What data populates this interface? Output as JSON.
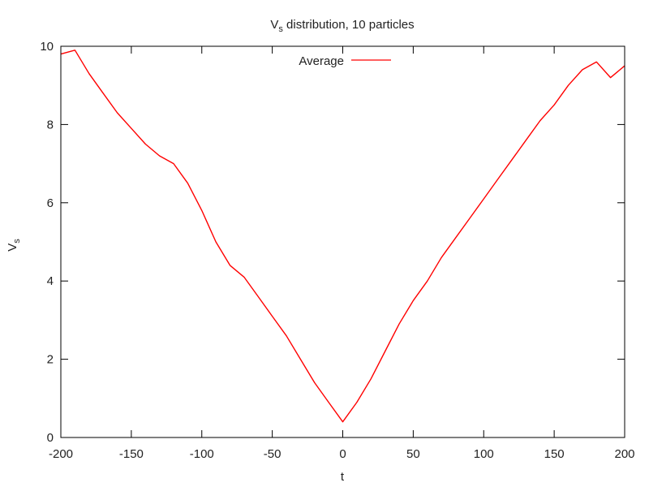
{
  "chart_data": {
    "type": "line",
    "title_main": "V",
    "title_sub": "s",
    "title_rest": " distribution, 10 particles",
    "xlabel": "t",
    "ylabel_main": "V",
    "ylabel_sub": "s",
    "xlim": [
      -200,
      200
    ],
    "ylim": [
      0,
      10
    ],
    "xticks": [
      -200,
      -150,
      -100,
      -50,
      0,
      50,
      100,
      150,
      200
    ],
    "yticks": [
      0,
      2,
      4,
      6,
      8,
      10
    ],
    "xtick_labels": [
      "-200",
      "-150",
      "-100",
      "-50",
      "0",
      "50",
      "100",
      "150",
      "200"
    ],
    "ytick_labels": [
      "0",
      "2",
      "4",
      "6",
      "8",
      "10"
    ],
    "grid": false,
    "legend_position": "top-center",
    "series": [
      {
        "name": "Average",
        "color": "#ff0000",
        "x": [
          -200,
          -190,
          -180,
          -170,
          -160,
          -150,
          -140,
          -130,
          -120,
          -110,
          -100,
          -90,
          -80,
          -70,
          -60,
          -50,
          -40,
          -30,
          -20,
          -10,
          0,
          10,
          20,
          30,
          40,
          50,
          60,
          70,
          80,
          90,
          100,
          110,
          120,
          130,
          140,
          150,
          160,
          170,
          180,
          190,
          200
        ],
        "y": [
          9.8,
          9.9,
          9.3,
          8.8,
          8.3,
          7.9,
          7.5,
          7.2,
          7.0,
          6.5,
          5.8,
          5.0,
          4.4,
          4.1,
          3.6,
          3.1,
          2.6,
          2.0,
          1.4,
          0.9,
          0.4,
          0.9,
          1.5,
          2.2,
          2.9,
          3.5,
          4.0,
          4.6,
          5.1,
          5.6,
          6.1,
          6.6,
          7.1,
          7.6,
          8.1,
          8.5,
          9.0,
          9.4,
          9.6,
          9.2,
          9.5
        ]
      }
    ]
  }
}
